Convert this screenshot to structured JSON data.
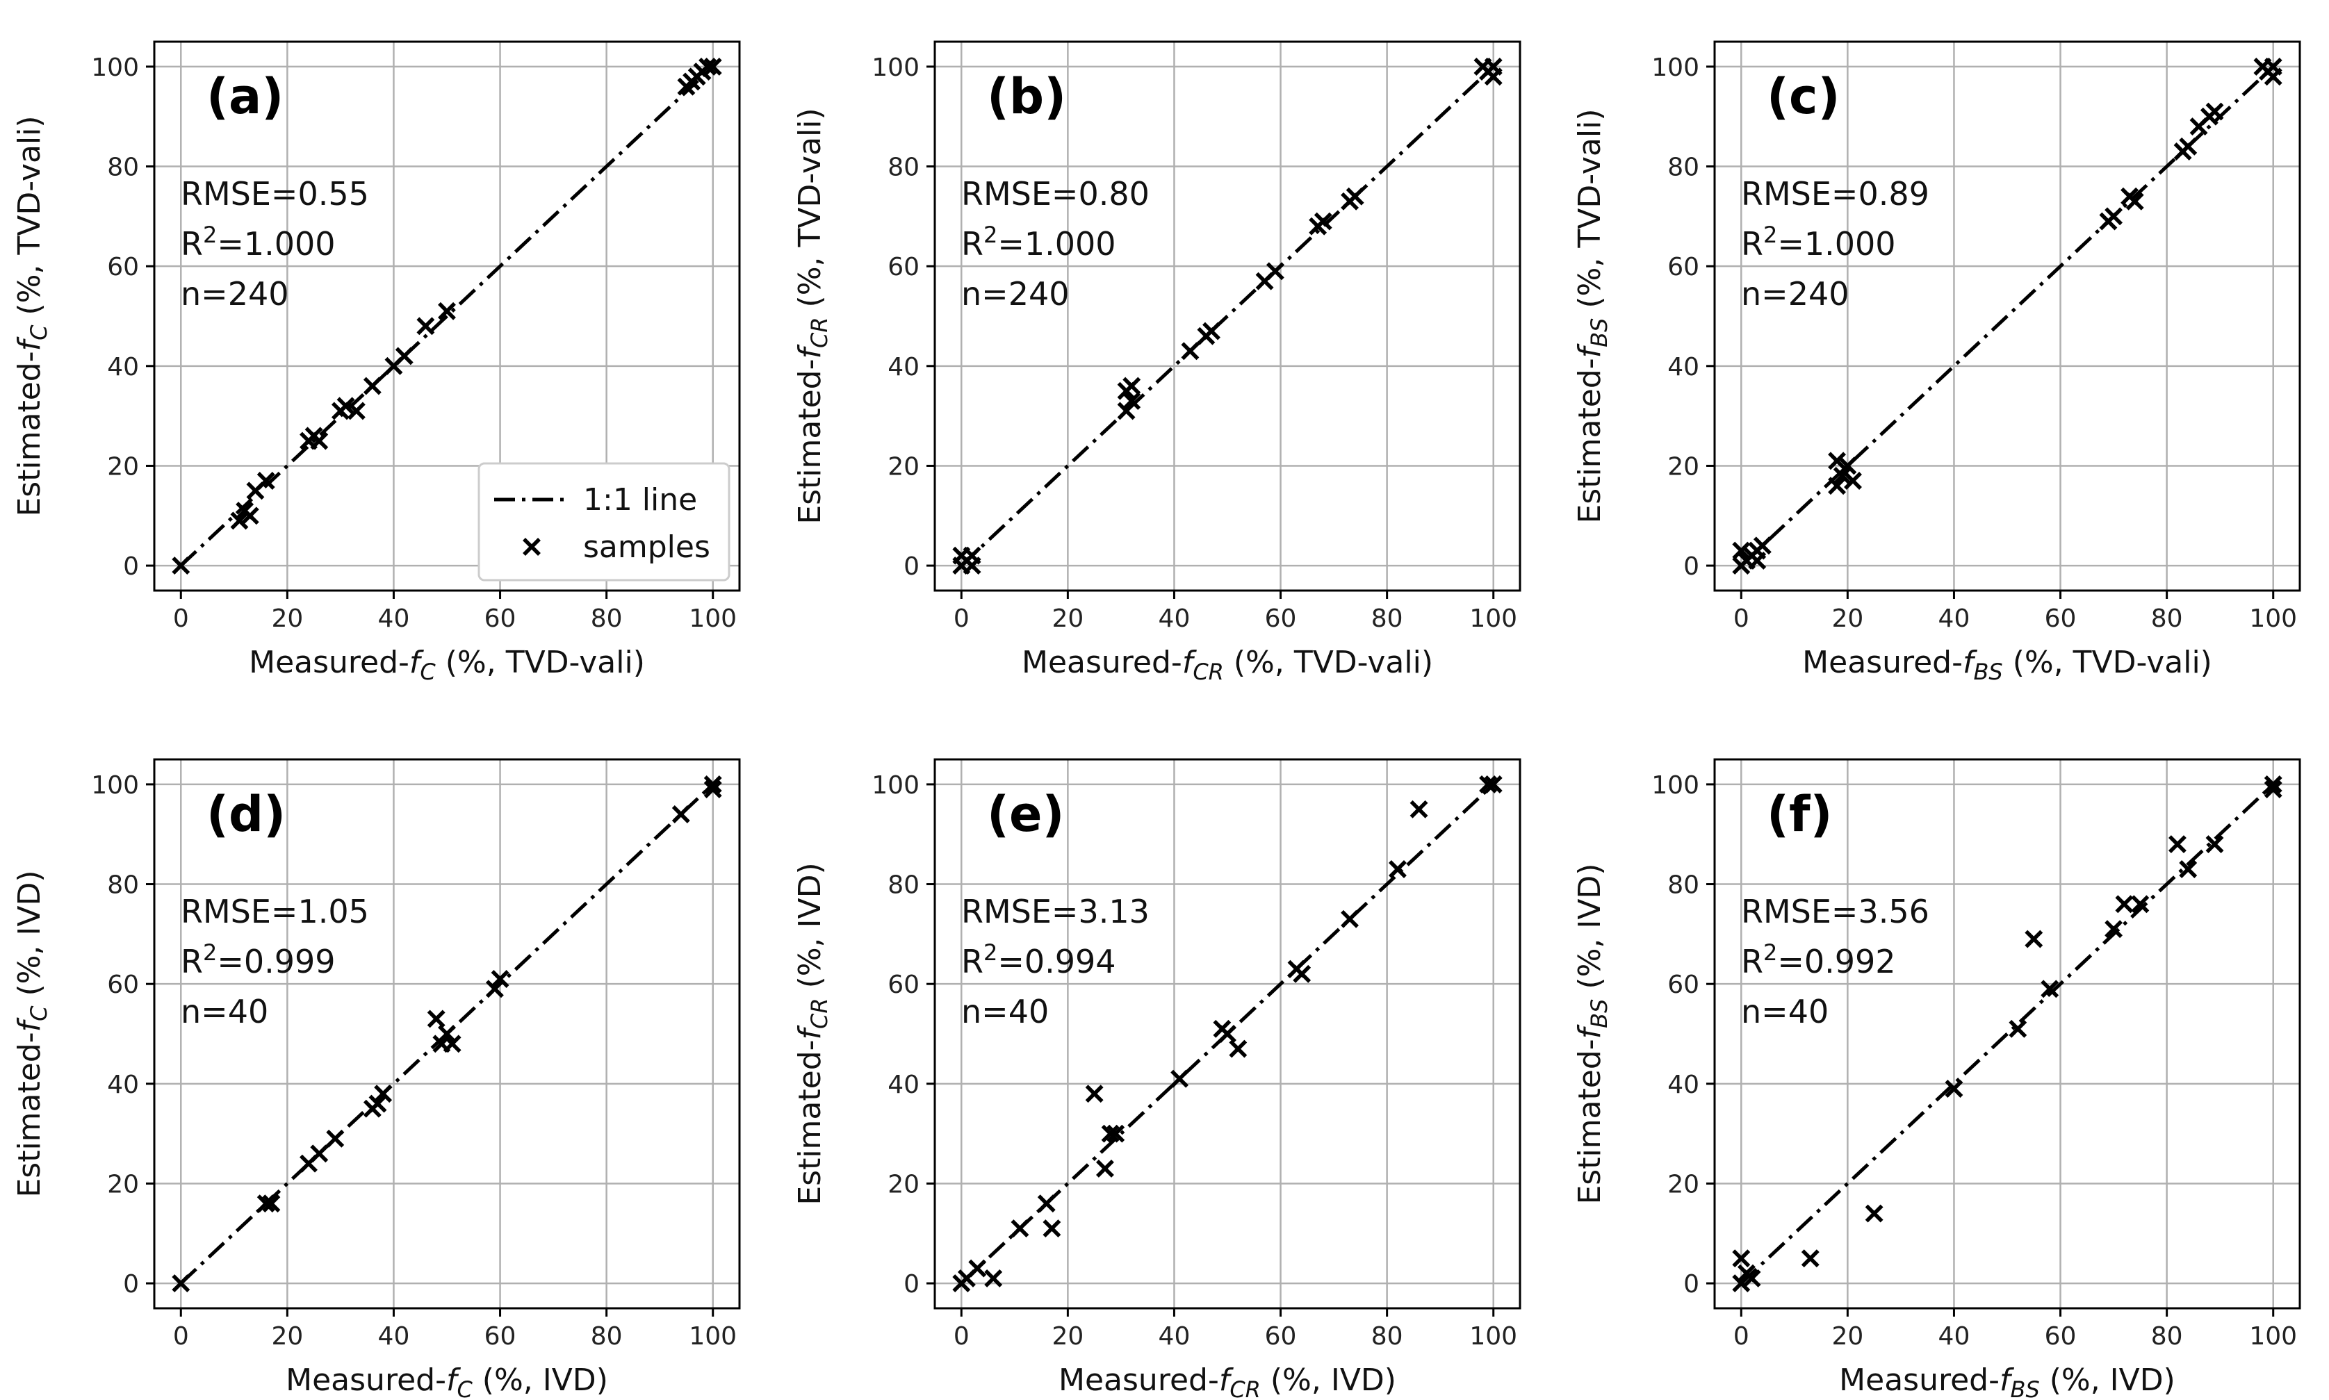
{
  "chart_data": [
    {
      "type": "scatter",
      "panel": "(a)",
      "xlabel": "Measured-",
      "xsym": "f",
      "xsub": "C",
      "xsuffix": " (%, TVD-vali)",
      "ylabel": "Estimated-",
      "ysym": "f",
      "ysub": "C",
      "ysuffix": " (%, TVD-vali)",
      "xlim": [
        -5,
        105
      ],
      "ylim": [
        -5,
        105
      ],
      "ticks": [
        0,
        20,
        40,
        60,
        80,
        100
      ],
      "grid": true,
      "stats": [
        "RMSE=0.55",
        "R",
        "2",
        "=1.000",
        "n=240"
      ],
      "legend": {
        "position": "lower-right",
        "line_label": "1:1 line",
        "marker_label": "samples"
      },
      "x": [
        0,
        11,
        12,
        13,
        14,
        16,
        24,
        25,
        26,
        30,
        31,
        33,
        36,
        40,
        42,
        46,
        50,
        95,
        96,
        97,
        98,
        99,
        100
      ],
      "y": [
        0,
        9,
        11,
        10,
        15,
        17,
        25,
        26,
        25,
        31,
        32,
        31,
        36,
        40,
        42,
        48,
        51,
        96,
        97,
        98,
        99,
        100,
        100
      ]
    },
    {
      "type": "scatter",
      "panel": "(b)",
      "xlabel": "Measured-",
      "xsym": "f",
      "xsub": "CR",
      "xsuffix": " (%, TVD-vali)",
      "ylabel": "Estimated-",
      "ysym": "f",
      "ysub": "CR",
      "ysuffix": " (%, TVD-vali)",
      "xlim": [
        -5,
        105
      ],
      "ylim": [
        -5,
        105
      ],
      "ticks": [
        0,
        20,
        40,
        60,
        80,
        100
      ],
      "grid": true,
      "stats": [
        "RMSE=0.80",
        "R",
        "2",
        "=1.000",
        "n=240"
      ],
      "x": [
        0,
        1,
        2,
        0,
        2,
        31,
        32,
        31,
        32,
        43,
        46,
        47,
        57,
        59,
        67,
        68,
        73,
        74,
        98,
        99,
        100,
        100
      ],
      "y": [
        0,
        1,
        0,
        2,
        2,
        31,
        33,
        35,
        36,
        43,
        46,
        47,
        57,
        59,
        68,
        69,
        73,
        74,
        100,
        99,
        98,
        100
      ]
    },
    {
      "type": "scatter",
      "panel": "(c)",
      "xlabel": "Measured-",
      "xsym": "f",
      "xsub": "BS",
      "xsuffix": " (%, TVD-vali)",
      "ylabel": "Estimated-",
      "ysym": "f",
      "ysub": "BS",
      "ysuffix": " (%, TVD-vali)",
      "xlim": [
        -5,
        105
      ],
      "ylim": [
        -5,
        105
      ],
      "ticks": [
        0,
        20,
        40,
        60,
        80,
        100
      ],
      "grid": true,
      "stats": [
        "RMSE=0.89",
        "R",
        "2",
        "=1.000",
        "n=240"
      ],
      "x": [
        0,
        1,
        2,
        3,
        4,
        0,
        3,
        18,
        19,
        20,
        21,
        18,
        69,
        70,
        73,
        74,
        83,
        84,
        86,
        88,
        89,
        98,
        99,
        100,
        100
      ],
      "y": [
        0,
        1,
        2,
        3,
        4,
        3,
        1,
        16,
        18,
        20,
        17,
        21,
        69,
        70,
        74,
        73,
        83,
        84,
        88,
        90,
        91,
        100,
        99,
        98,
        100
      ]
    },
    {
      "type": "scatter",
      "panel": "(d)",
      "xlabel": "Measured-",
      "xsym": "f",
      "xsub": "C",
      "xsuffix": " (%, IVD)",
      "ylabel": "Estimated-",
      "ysym": "f",
      "ysub": "C",
      "ysuffix": " (%, IVD)",
      "xlim": [
        -5,
        105
      ],
      "ylim": [
        -5,
        105
      ],
      "ticks": [
        0,
        20,
        40,
        60,
        80,
        100
      ],
      "grid": true,
      "stats": [
        "RMSE=1.05",
        "R",
        "2",
        "=0.999",
        "n=40"
      ],
      "x": [
        0,
        16,
        17,
        24,
        26,
        29,
        36,
        37,
        38,
        48,
        49,
        50,
        51,
        59,
        60,
        94,
        100,
        100
      ],
      "y": [
        0,
        16,
        16,
        24,
        26,
        29,
        35,
        36,
        38,
        53,
        48,
        50,
        48,
        59,
        61,
        94,
        100,
        99
      ],
      "note": "approximate readings"
    },
    {
      "type": "scatter",
      "panel": "(e)",
      "xlabel": "Measured-",
      "xsym": "f",
      "xsub": "CR",
      "xsuffix": " (%, IVD)",
      "ylabel": "Estimated-",
      "ysym": "f",
      "ysub": "CR",
      "ysuffix": " (%, IVD)",
      "xlim": [
        -5,
        105
      ],
      "ylim": [
        -5,
        105
      ],
      "ticks": [
        0,
        20,
        40,
        60,
        80,
        100
      ],
      "grid": true,
      "stats": [
        "RMSE=3.13",
        "R",
        "2",
        "=0.994",
        "n=40"
      ],
      "x": [
        0,
        1,
        3,
        6,
        11,
        16,
        17,
        25,
        27,
        28,
        29,
        41,
        49,
        50,
        52,
        63,
        64,
        73,
        82,
        86,
        99,
        100
      ],
      "y": [
        0,
        1,
        3,
        1,
        11,
        16,
        11,
        38,
        23,
        30,
        30,
        41,
        51,
        50,
        47,
        63,
        62,
        73,
        83,
        95,
        100,
        100
      ]
    },
    {
      "type": "scatter",
      "panel": "(f)",
      "xlabel": "Measured-",
      "xsym": "f",
      "xsub": "BS",
      "xsuffix": " (%, IVD)",
      "ylabel": "Estimated-",
      "ysym": "f",
      "ysub": "BS",
      "ysuffix": " (%, IVD)",
      "xlim": [
        -5,
        105
      ],
      "ylim": [
        -5,
        105
      ],
      "ticks": [
        0,
        20,
        40,
        60,
        80,
        100
      ],
      "grid": true,
      "stats": [
        "RMSE=3.56",
        "R",
        "2",
        "=0.992",
        "n=40"
      ],
      "x": [
        0,
        0,
        1,
        2,
        13,
        25,
        40,
        52,
        55,
        58,
        70,
        72,
        75,
        82,
        84,
        89,
        100,
        100
      ],
      "y": [
        0,
        5,
        2,
        1,
        5,
        14,
        39,
        51,
        69,
        59,
        71,
        76,
        76,
        88,
        83,
        88,
        100,
        99
      ]
    }
  ]
}
